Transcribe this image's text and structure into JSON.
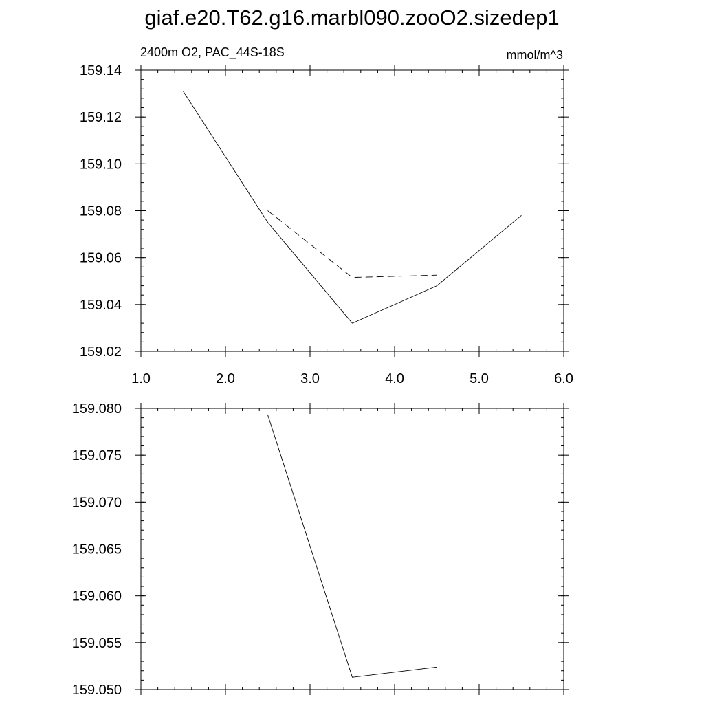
{
  "figure": {
    "title": "giaf.e20.T62.g16.marbl090.zooO2.sizedep1",
    "left_label": "2400m O2, PAC_44S-18S",
    "right_label": "mmol/m^3"
  },
  "chart_data": [
    {
      "type": "line",
      "x_range": [
        1.0,
        6.0
      ],
      "ylim": [
        159.02,
        159.14
      ],
      "x_ticks": [
        1.0,
        2.0,
        3.0,
        4.0,
        5.0,
        6.0
      ],
      "x_tick_labels": [
        "1.0",
        "2.0",
        "3.0",
        "4.0",
        "5.0",
        "6.0"
      ],
      "y_ticks": [
        159.02,
        159.04,
        159.06,
        159.08,
        159.1,
        159.12,
        159.14
      ],
      "y_tick_labels": [
        "159.02",
        "159.04",
        "159.06",
        "159.08",
        "159.10",
        "159.12",
        "159.14"
      ],
      "grid": false,
      "series": [
        {
          "style": "solid",
          "x": [
            1.5,
            2.5,
            3.5,
            4.5,
            5.5
          ],
          "y": [
            159.131,
            159.075,
            159.032,
            159.048,
            159.078
          ]
        },
        {
          "style": "dashed",
          "x": [
            2.5,
            3.5,
            4.5
          ],
          "y": [
            159.08,
            159.0515,
            159.0525
          ]
        }
      ]
    },
    {
      "type": "line",
      "x_range": [
        1.0,
        6.0
      ],
      "ylim": [
        159.05,
        159.08
      ],
      "x_ticks": [
        1.0,
        2.0,
        3.0,
        4.0,
        5.0,
        6.0
      ],
      "y_ticks": [
        159.05,
        159.055,
        159.06,
        159.065,
        159.07,
        159.075,
        159.08
      ],
      "y_tick_labels": [
        "159.050",
        "159.055",
        "159.060",
        "159.065",
        "159.070",
        "159.075",
        "159.080"
      ],
      "grid": false,
      "series": [
        {
          "style": "solid",
          "x": [
            2.5,
            3.5,
            4.5
          ],
          "y": [
            159.0793,
            159.0513,
            159.0524
          ]
        }
      ]
    }
  ]
}
